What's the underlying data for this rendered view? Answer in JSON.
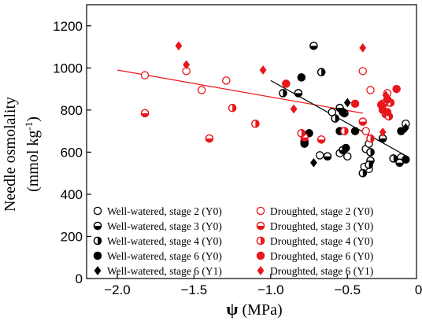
{
  "chart_data": {
    "type": "scatter",
    "ylabel_line1": "Needle osmolality",
    "ylabel_line2_prefix": "(mmol kg",
    "ylabel_line2_sup": "-1",
    "ylabel_line2_suffix": ")",
    "xlabel_symbol": "ψ",
    "xlabel_unit": " (MPa)",
    "xlim": [
      -2.2,
      -0.05
    ],
    "ylim": [
      0,
      1300
    ],
    "xticks": [
      -2.0,
      -1.5,
      -1.0,
      -0.5,
      0.0
    ],
    "xtick_labels": [
      "−2.0",
      "−1.5",
      "−1.0",
      "−0.5",
      "0.0"
    ],
    "yticks": [
      0,
      200,
      400,
      600,
      800,
      1000,
      1200
    ],
    "ytick_labels": [
      "0",
      "200",
      "400",
      "600",
      "800",
      "1000",
      "1200"
    ],
    "colors": {
      "well": "#000000",
      "drought": "#e8171c"
    },
    "regression_lines": [
      {
        "group": "drought",
        "x": [
          -2.0,
          -0.4
        ],
        "y": [
          990,
          785
        ],
        "color": "#e8171c"
      },
      {
        "group": "well",
        "x": [
          -1.0,
          -0.1
        ],
        "y": [
          940,
          575
        ],
        "color": "#000000"
      }
    ],
    "series": [
      {
        "name": "Well-watered, stage 2 (Y0)",
        "group": "well",
        "marker": "open-circle",
        "points": [
          [
            -0.68,
            585
          ],
          [
            -0.55,
            595
          ],
          [
            -0.5,
            580
          ],
          [
            -0.38,
            615
          ],
          [
            -0.36,
            640
          ],
          [
            -0.36,
            520
          ],
          [
            -0.39,
            530
          ],
          [
            -0.15,
            575
          ],
          [
            -0.12,
            735
          ],
          [
            -0.6,
            790
          ]
        ]
      },
      {
        "name": "Well-watered, stage 3 (Y0)",
        "group": "well",
        "marker": "half-bottom",
        "points": [
          [
            -0.72,
            1105
          ],
          [
            -0.82,
            880
          ],
          [
            -0.55,
            810
          ],
          [
            -0.52,
            785
          ],
          [
            -0.53,
            610
          ],
          [
            -0.63,
            580
          ],
          [
            -0.35,
            560
          ],
          [
            -0.27,
            665
          ],
          [
            -0.16,
            550
          ],
          [
            -0.78,
            650
          ]
        ]
      },
      {
        "name": "Well-watered, stage 4 (Y0)",
        "group": "well",
        "marker": "half-right",
        "points": [
          [
            -0.92,
            880
          ],
          [
            -0.67,
            980
          ],
          [
            -0.35,
            600
          ],
          [
            -0.36,
            540
          ],
          [
            -0.2,
            570
          ],
          [
            -0.4,
            500
          ],
          [
            -0.58,
            760
          ]
        ]
      },
      {
        "name": "Well-watered, stage 6 (Y0)",
        "group": "well",
        "marker": "filled-circle",
        "points": [
          [
            -0.8,
            955
          ],
          [
            -0.75,
            690
          ],
          [
            -0.78,
            640
          ],
          [
            -0.53,
            790
          ],
          [
            -0.51,
            620
          ],
          [
            -0.15,
            700
          ],
          [
            -0.12,
            565
          ],
          [
            -0.45,
            700
          ],
          [
            -0.55,
            700
          ]
        ]
      },
      {
        "name": "Well-watered, stage 6 (Y1)",
        "group": "well",
        "marker": "diamond",
        "points": [
          [
            -0.72,
            550
          ],
          [
            -0.5,
            835
          ],
          [
            -0.12,
            715
          ]
        ]
      },
      {
        "name": "Droughted, stage 2 (Y0)",
        "group": "drought",
        "marker": "open-circle",
        "points": [
          [
            -1.82,
            965
          ],
          [
            -1.55,
            985
          ],
          [
            -1.45,
            895
          ],
          [
            -1.29,
            940
          ],
          [
            -0.4,
            985
          ],
          [
            -0.35,
            895
          ],
          [
            -0.38,
            700
          ],
          [
            -0.25,
            835
          ],
          [
            -0.24,
            880
          ]
        ]
      },
      {
        "name": "Droughted, stage 3 (Y0)",
        "group": "drought",
        "marker": "half-bottom",
        "points": [
          [
            -1.82,
            785
          ],
          [
            -1.4,
            665
          ],
          [
            -0.78,
            670
          ],
          [
            -0.67,
            660
          ],
          [
            -0.4,
            745
          ],
          [
            -0.25,
            780
          ],
          [
            -0.27,
            830
          ]
        ]
      },
      {
        "name": "Droughted, stage 4 (Y0)",
        "group": "drought",
        "marker": "half-right",
        "points": [
          [
            -1.25,
            810
          ],
          [
            -1.1,
            735
          ],
          [
            -0.8,
            690
          ],
          [
            -0.52,
            700
          ],
          [
            -0.35,
            665
          ],
          [
            -0.23,
            770
          ],
          [
            -0.22,
            835
          ]
        ]
      },
      {
        "name": "Droughted, stage 6 (Y0)",
        "group": "drought",
        "marker": "filled-circle",
        "points": [
          [
            -0.9,
            925
          ],
          [
            -0.45,
            830
          ],
          [
            -0.28,
            825
          ],
          [
            -0.18,
            900
          ],
          [
            -0.27,
            800
          ],
          [
            -0.24,
            850
          ],
          [
            -0.24,
            790
          ]
        ]
      },
      {
        "name": "Droughted, stage 6 (Y1)",
        "group": "drought",
        "marker": "diamond",
        "points": [
          [
            -1.6,
            1105
          ],
          [
            -1.55,
            1015
          ],
          [
            -1.05,
            990
          ],
          [
            -0.85,
            805
          ],
          [
            -0.4,
            1095
          ],
          [
            -0.25,
            870
          ],
          [
            -0.27,
            695
          ]
        ]
      }
    ]
  }
}
